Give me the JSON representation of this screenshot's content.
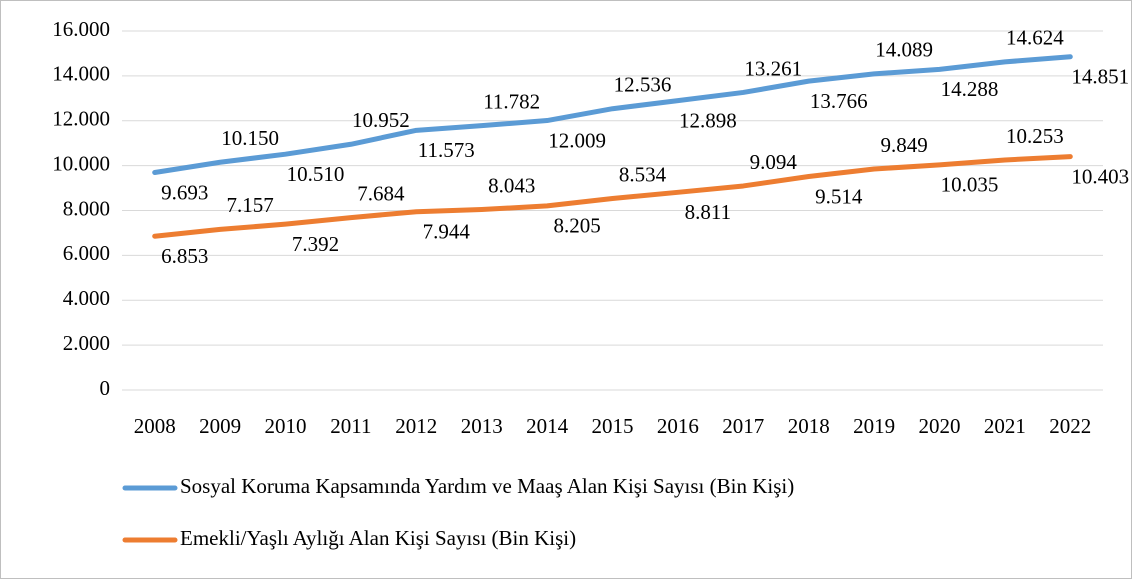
{
  "chart_data": {
    "type": "line",
    "categories": [
      "2008",
      "2009",
      "2010",
      "2011",
      "2012",
      "2013",
      "2014",
      "2015",
      "2016",
      "2017",
      "2018",
      "2019",
      "2020",
      "2021",
      "2022"
    ],
    "series": [
      {
        "name": "Sosyal Koruma Kapsamında Yardım ve Maaş Alan Kişi Sayısı (Bin Kişi)",
        "color": "#5b9bd5",
        "values": [
          9693,
          10150,
          10510,
          10952,
          11573,
          11782,
          12009,
          12536,
          12898,
          13261,
          13766,
          14089,
          14288,
          14624,
          14851
        ],
        "value_labels": [
          "9.693",
          "10.150",
          "10.510",
          "10.952",
          "11.573",
          "11.782",
          "12.009",
          "12.536",
          "12.898",
          "13.261",
          "13.766",
          "14.089",
          "14.288",
          "14.624",
          "14.851"
        ]
      },
      {
        "name": "Emekli/Yaşlı Aylığı Alan Kişi Sayısı (Bin Kişi)",
        "color": "#ed7d31",
        "values": [
          6853,
          7157,
          7392,
          7684,
          7944,
          8043,
          8205,
          8534,
          8811,
          9094,
          9514,
          9849,
          10035,
          10253,
          10403
        ],
        "value_labels": [
          "6.853",
          "7.157",
          "7.392",
          "7.684",
          "7.944",
          "8.043",
          "8.205",
          "8.534",
          "8.811",
          "9.094",
          "9.514",
          "9.849",
          "10.035",
          "10.253",
          "10.403"
        ]
      }
    ],
    "ylim": [
      0,
      16000
    ],
    "yticks": [
      0,
      {
        "value": 2000,
        "label": "2.000"
      },
      {
        "value": 4000,
        "label": "4.000"
      },
      {
        "value": 6000,
        "label": "6.000"
      },
      {
        "value": 8000,
        "label": "8.000"
      },
      {
        "value": 10000,
        "label": "10.000"
      },
      {
        "value": 12000,
        "label": "12.000"
      },
      {
        "value": 14000,
        "label": "14.000"
      },
      {
        "value": 16000,
        "label": "16.000"
      }
    ],
    "grid": true
  }
}
